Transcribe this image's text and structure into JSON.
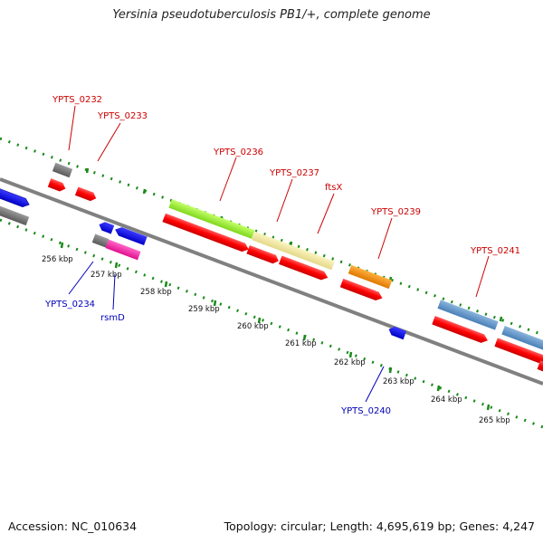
{
  "title": "Yersinia pseudotuberculosis PB1/+, complete genome",
  "footer": {
    "accession": "Accession: NC_010634",
    "summary": "Topology: circular; Length: 4,695,619 bp; Genes: 4,247"
  },
  "colors": {
    "backbone": "#808080",
    "tick": "#1a8a1a",
    "cds": "#ff0000",
    "reverse": "#0000ee",
    "label_fwd": "#cc0000",
    "label_rev": "#0000bb"
  },
  "scale_labels": [
    "256 kbp",
    "257 kbp",
    "258 kbp",
    "259 kbp",
    "260 kbp",
    "261 kbp",
    "262 kbp",
    "263 kbp",
    "264 kbp",
    "265 kbp"
  ],
  "labels_forward": [
    "YPTS_0232",
    "YPTS_0233",
    "YPTS_0236",
    "YPTS_0237",
    "ftsX",
    "YPTS_0239",
    "YPTS_0241"
  ],
  "labels_reverse": [
    "YPTS_0234",
    "rsmD",
    "YPTS_0240"
  ]
}
